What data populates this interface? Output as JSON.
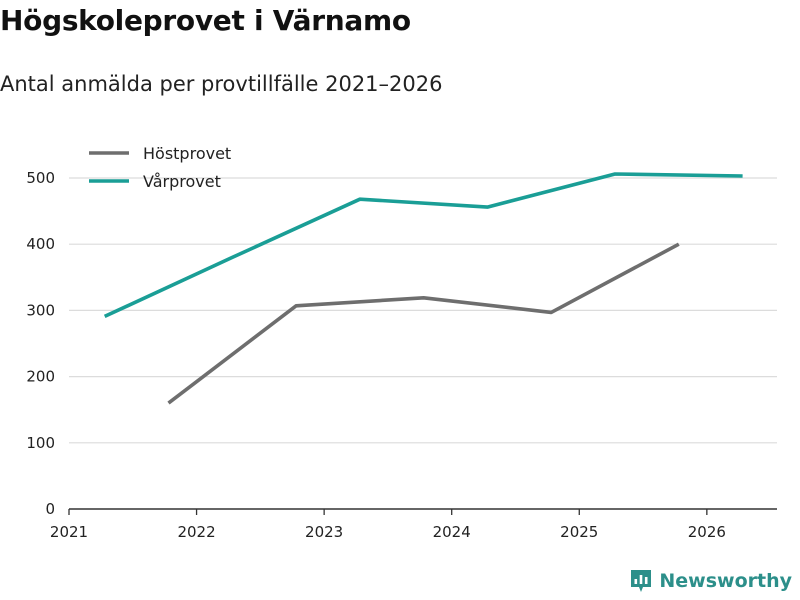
{
  "title": "Högskoleprovet i Värnamo",
  "subtitle": "Antal anmälda per provtillfälle 2021–2026",
  "brand": {
    "name": "Newsworthy",
    "color": "#2c8f8a"
  },
  "chart_data": {
    "type": "line",
    "title": "Högskoleprovet i Värnamo",
    "subtitle": "Antal anmälda per provtillfälle 2021–2026",
    "xlabel": "",
    "ylabel": "",
    "xlim": [
      2021,
      2026.55
    ],
    "ylim": [
      0,
      520
    ],
    "x_ticks": [
      2021,
      2022,
      2023,
      2024,
      2025,
      2026
    ],
    "y_ticks": [
      0,
      100,
      200,
      300,
      400,
      500
    ],
    "grid": true,
    "legend_position": "top-left",
    "series": [
      {
        "name": "Höstprovet",
        "color": "#6e6e6e",
        "x": [
          2021.78,
          2022.78,
          2023.78,
          2024.78,
          2025.78
        ],
        "values": [
          160,
          307,
          319,
          297,
          400
        ]
      },
      {
        "name": "Vårprovet",
        "color": "#1a9e96",
        "x": [
          2021.28,
          2022.28,
          2023.28,
          2024.28,
          2025.28,
          2026.28
        ],
        "values": [
          291,
          380,
          468,
          456,
          506,
          503
        ]
      }
    ]
  }
}
